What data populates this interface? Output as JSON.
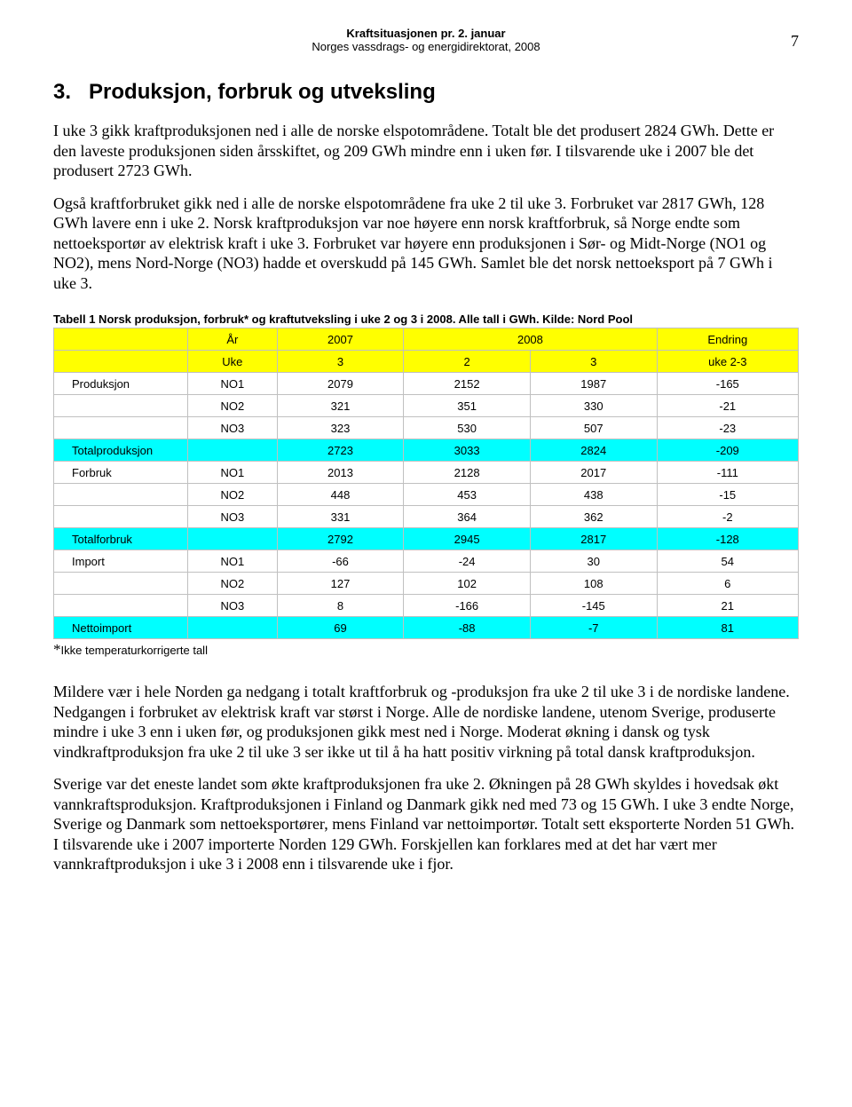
{
  "header": {
    "title": "Kraftsituasjonen pr. 2. januar",
    "subtitle": "Norges vassdrags- og energidirektorat, 2008",
    "page_number": "7"
  },
  "section": {
    "number": "3.",
    "title": "Produksjon, forbruk og utveksling"
  },
  "paragraphs": {
    "p1": "I uke 3 gikk kraftproduksjonen ned i alle de norske elspotområdene. Totalt ble det produsert 2824 GWh. Dette er den laveste produksjonen siden årsskiftet, og 209 GWh mindre enn i uken før. I tilsvarende uke i 2007 ble det produsert 2723 GWh.",
    "p2": "Også kraftforbruket gikk ned i alle de norske elspotområdene fra uke 2 til uke 3. Forbruket var 2817 GWh, 128 GWh lavere enn i uke 2. Norsk kraftproduksjon var noe høyere enn norsk kraftforbruk, så Norge endte som nettoeksportør av elektrisk kraft i uke 3. Forbruket var høyere enn produksjonen i Sør- og Midt-Norge (NO1 og NO2), mens Nord-Norge (NO3) hadde et overskudd på 145 GWh. Samlet ble det norsk nettoeksport på 7 GWh i uke 3.",
    "p3": "Mildere vær i hele Norden ga nedgang i totalt kraftforbruk og -produksjon fra uke 2 til uke 3 i de nordiske landene. Nedgangen i forbruket av elektrisk kraft var størst i Norge. Alle de nordiske landene, utenom Sverige, produserte mindre i uke 3 enn i uken før, og produksjonen gikk mest ned i Norge. Moderat økning i dansk og tysk vindkraftproduksjon fra uke 2 til uke 3 ser ikke ut til å ha hatt positiv virkning på total dansk kraftproduksjon.",
    "p4": "Sverige var det eneste landet som økte kraftproduksjonen fra uke 2. Økningen på 28 GWh skyldes i hovedsak økt vannkraftsproduksjon. Kraftproduksjonen i Finland og Danmark gikk ned med 73 og 15 GWh. I uke 3 endte Norge, Sverige og Danmark som nettoeksportører, mens Finland var nettoimportør. Totalt sett eksporterte Norden 51 GWh. I tilsvarende uke i 2007 importerte Norden 129 GWh. Forskjellen kan forklares med at det har vært mer vannkraftproduksjon i uke 3 i 2008 enn i tilsvarende uke i fjor."
  },
  "table": {
    "caption": "Tabell 1 Norsk produksjon, forbruk* og kraftutveksling i uke 2 og 3 i 2008. Alle tall i GWh. Kilde: Nord Pool",
    "header_row1": {
      "c1": "",
      "c2": "År",
      "c3": "2007",
      "c4_5": "2008",
      "c6": "Endring"
    },
    "header_row2": {
      "c1": "",
      "c2": "Uke",
      "c3": "3",
      "c4": "2",
      "c5": "3",
      "c6": "uke 2-3"
    },
    "rows": [
      {
        "style": "",
        "label": "Produksjon",
        "sub": "NO1",
        "c3": "2079",
        "c4": "2152",
        "c5": "1987",
        "c6": "-165"
      },
      {
        "style": "",
        "label": "",
        "sub": "NO2",
        "c3": "321",
        "c4": "351",
        "c5": "330",
        "c6": "-21"
      },
      {
        "style": "",
        "label": "",
        "sub": "NO3",
        "c3": "323",
        "c4": "530",
        "c5": "507",
        "c6": "-23"
      },
      {
        "style": "cyan",
        "label": "Totalproduksjon",
        "sub": "",
        "c3": "2723",
        "c4": "3033",
        "c5": "2824",
        "c6": "-209"
      },
      {
        "style": "",
        "label": "Forbruk",
        "sub": "NO1",
        "c3": "2013",
        "c4": "2128",
        "c5": "2017",
        "c6": "-111"
      },
      {
        "style": "",
        "label": "",
        "sub": "NO2",
        "c3": "448",
        "c4": "453",
        "c5": "438",
        "c6": "-15"
      },
      {
        "style": "",
        "label": "",
        "sub": "NO3",
        "c3": "331",
        "c4": "364",
        "c5": "362",
        "c6": "-2"
      },
      {
        "style": "cyan",
        "label": "Totalforbruk",
        "sub": "",
        "c3": "2792",
        "c4": "2945",
        "c5": "2817",
        "c6": "-128"
      },
      {
        "style": "",
        "label": "Import",
        "sub": "NO1",
        "c3": "-66",
        "c4": "-24",
        "c5": "30",
        "c6": "54"
      },
      {
        "style": "",
        "label": "",
        "sub": "NO2",
        "c3": "127",
        "c4": "102",
        "c5": "108",
        "c6": "6"
      },
      {
        "style": "",
        "label": "",
        "sub": "NO3",
        "c3": "8",
        "c4": "-166",
        "c5": "-145",
        "c6": "21"
      },
      {
        "style": "cyan",
        "label": "Nettoimport",
        "sub": "",
        "c3": "69",
        "c4": "-88",
        "c5": "-7",
        "c6": "81"
      }
    ],
    "footnote_star": "*",
    "footnote_text": "Ikke temperaturkorrigerte tall",
    "colors": {
      "header_bg": "#ffff00",
      "highlight_bg": "#00ffff"
    }
  }
}
